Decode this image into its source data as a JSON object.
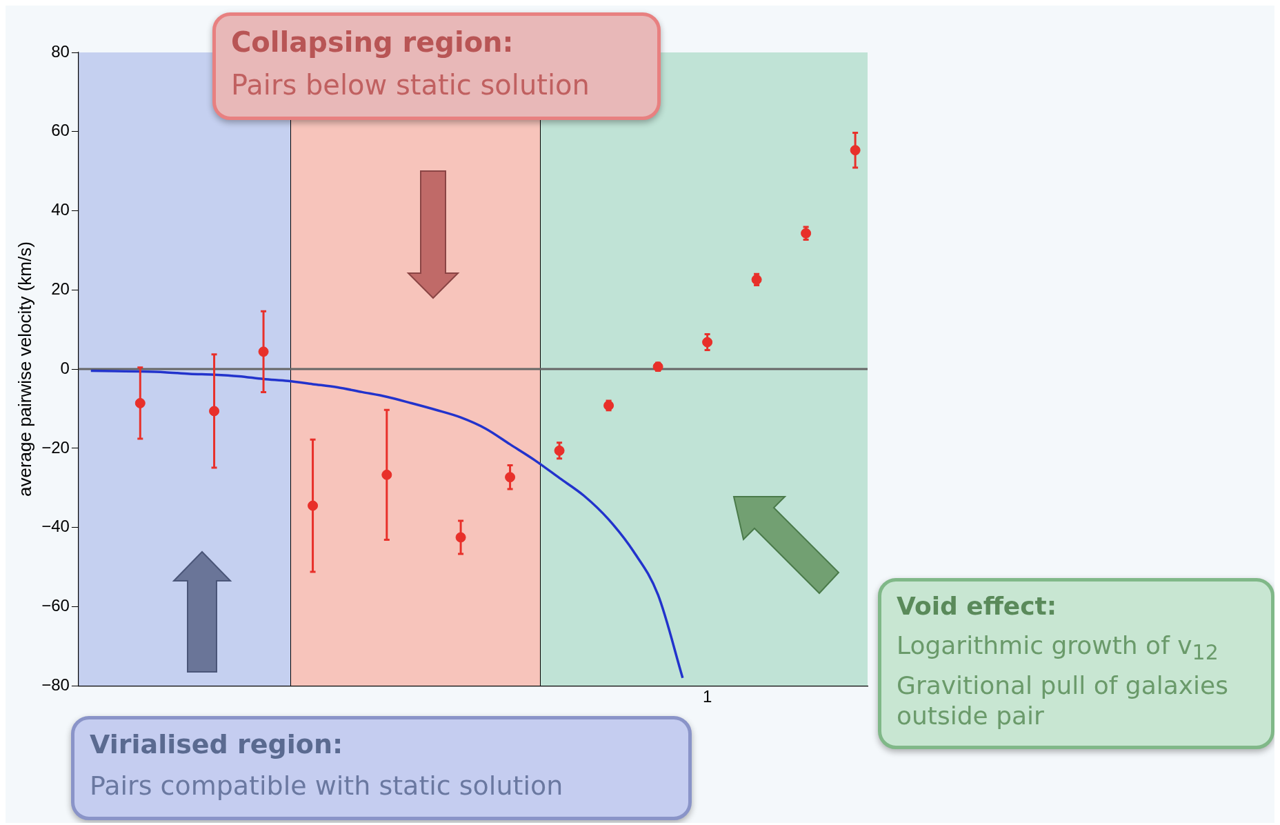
{
  "chart_data": {
    "type": "scatter",
    "ylabel": "average pairwise velocity (km/s)",
    "grid": false,
    "legend": false,
    "ylim": [
      -80,
      80
    ],
    "yticks": [
      80,
      60,
      40,
      20,
      0,
      {
        "value": -20,
        "label": "−20"
      },
      {
        "value": -40,
        "label": "−40"
      },
      {
        "value": -60,
        "label": "−60"
      },
      {
        "value": -80,
        "label": "−80"
      }
    ],
    "categories": [
      null,
      null,
      null,
      null,
      null,
      null,
      null,
      null,
      null,
      null,
      null,
      null,
      null,
      null,
      null,
      null,
      null,
      null,
      null,
      null,
      null,
      null,
      null,
      null,
      null,
      "1",
      null,
      null,
      null,
      null,
      null,
      null
    ],
    "series": [
      {
        "color": "#e8302a",
        "marker": "circle",
        "values": [
          null,
          null,
          -8.6,
          null,
          null,
          -10.6,
          null,
          4.4,
          null,
          -34.5,
          null,
          null,
          -26.7,
          null,
          null,
          -42.5,
          null,
          -27.3,
          null,
          -20.6,
          null,
          -9.2,
          null,
          0.6,
          null,
          6.8,
          null,
          22.6,
          null,
          34.3,
          null,
          55.3
        ],
        "errors": [
          null,
          null,
          9,
          null,
          null,
          14.3,
          null,
          10.2,
          null,
          16.7,
          null,
          null,
          16.4,
          null,
          null,
          4.2,
          null,
          3,
          null,
          2,
          null,
          1.2,
          null,
          1,
          null,
          2,
          null,
          1.4,
          null,
          1.6,
          null,
          4.4
        ]
      },
      {
        "type": "line",
        "color": "#2233cc",
        "marker": "none",
        "values": [
          -0.4,
          -0.5,
          -0.6,
          -0.8,
          -1.2,
          -1.4,
          -1.8,
          -2.5,
          -3,
          -3.8,
          -4.6,
          -5.8,
          -7,
          -8.6,
          -10.3,
          -12.2,
          -15,
          -19,
          -23,
          -27.5,
          -32,
          -38,
          -46,
          -57,
          -78,
          null,
          null,
          null,
          null,
          null,
          null,
          null
        ]
      }
    ],
    "ref_lines": [
      {
        "axis": "y",
        "value": 0,
        "color": "#666666"
      }
    ],
    "annotations": [
      "Collapsing region:",
      "Pairs below static solution",
      "Virialised region:",
      "Pairs compatible with static solution",
      "Void effect:",
      "Logarithmic growth of v$_{12}$",
      "Gravitional pull of galaxies outside pair"
    ]
  }
}
